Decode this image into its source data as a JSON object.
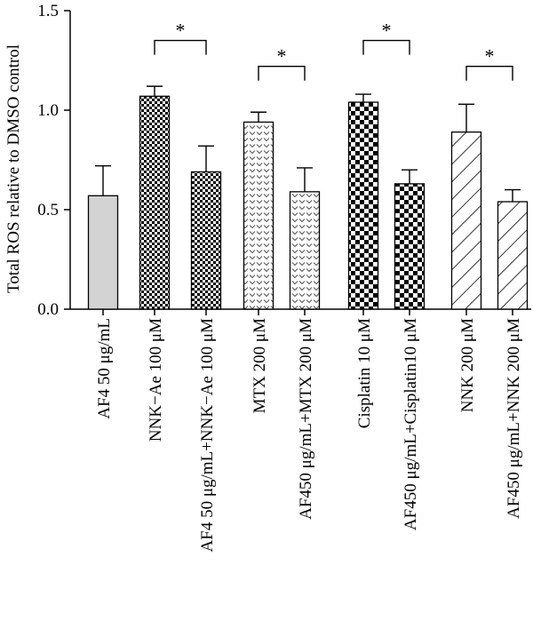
{
  "chart_data": {
    "type": "bar",
    "ylabel": "Total ROS relative to DMSO control",
    "ylim": [
      0,
      1.5
    ],
    "yticks": [
      "0.0",
      "0.5",
      "1.0",
      "1.5"
    ],
    "grid": false,
    "categories": [
      "AF4 50 μg/mL",
      "NNK−Ae 100 μM",
      "AF4 50 μg/mL+NNK−Ae 100 μM",
      "MTX 200 μM",
      "AF450 μg/mL+MTX 200 μM",
      "Cisplatin 10 μM",
      "AF450 μg/mL+Cisplatin10 μM",
      "NNK 200 μM",
      "AF450 μg/mL+NNK 200 μM"
    ],
    "values": [
      0.57,
      1.07,
      0.69,
      0.94,
      0.59,
      1.04,
      0.63,
      0.89,
      0.54
    ],
    "errors": [
      0.15,
      0.05,
      0.13,
      0.05,
      0.12,
      0.04,
      0.07,
      0.14,
      0.06
    ],
    "patterns": [
      "solid-gray",
      "checker-fine",
      "checker-fine",
      "chevron",
      "chevron",
      "checker-coarse",
      "checker-coarse",
      "diagonal-hatch",
      "diagonal-hatch"
    ],
    "significance": [
      {
        "from": 1,
        "to": 2,
        "label": "*"
      },
      {
        "from": 3,
        "to": 4,
        "label": "*"
      },
      {
        "from": 5,
        "to": 6,
        "label": "*"
      },
      {
        "from": 7,
        "to": 8,
        "label": "*"
      }
    ]
  }
}
